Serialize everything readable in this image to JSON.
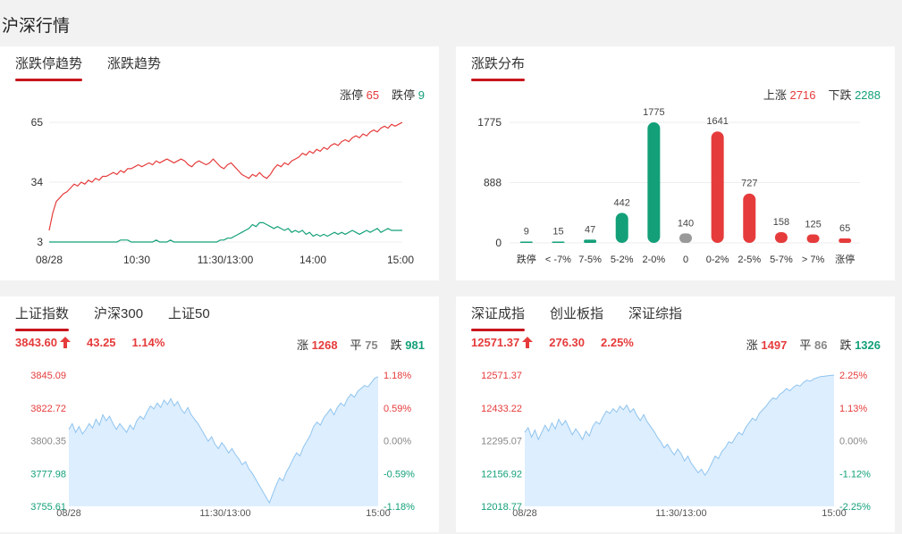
{
  "page_title": "沪深行情",
  "colors": {
    "up": "#e63b3b",
    "down": "#13a079",
    "flat": "#999999",
    "accent": "#c8161d",
    "area": "#ddeeff",
    "area_line": "#8fc4ee"
  },
  "updown": {
    "tabs": [
      "涨跌停趋势",
      "涨跌趋势"
    ],
    "active_tab": 0,
    "limit_up_label": "涨停",
    "limit_up_value": "65",
    "limit_down_label": "跌停",
    "limit_down_value": "9",
    "y_ticks": [
      "65",
      "34",
      "3"
    ],
    "x_ticks": [
      "08/28",
      "10:30",
      "11:30/13:00",
      "14:00",
      "15:00"
    ]
  },
  "dist": {
    "tabs": [
      "涨跌分布"
    ],
    "active_tab": 0,
    "up_label": "上涨",
    "up_value": "2716",
    "down_label": "下跌",
    "down_value": "2288",
    "y_ticks": [
      "1775",
      "888",
      "0"
    ]
  },
  "sh": {
    "tabs": [
      "上证指数",
      "沪深300",
      "上证50"
    ],
    "active_tab": 0,
    "price": "3843.60",
    "price_icon": "arrow-up-icon",
    "change": "43.25",
    "change_pct": "1.14%",
    "up_label": "涨",
    "up_count": "1268",
    "flat_label": "平",
    "flat_count": "75",
    "down_label": "跌",
    "down_count": "981",
    "y_ticks_left": [
      "3845.09",
      "3822.72",
      "3800.35",
      "3777.98",
      "3755.61"
    ],
    "y_ticks_right": [
      "1.18%",
      "0.59%",
      "0.00%",
      "-0.59%",
      "-1.18%"
    ],
    "x_ticks": [
      "08/28",
      "11:30/13:00",
      "15:00"
    ]
  },
  "sz": {
    "tabs": [
      "深证成指",
      "创业板指",
      "深证综指"
    ],
    "active_tab": 0,
    "price": "12571.37",
    "price_icon": "arrow-up-icon",
    "change": "276.30",
    "change_pct": "2.25%",
    "up_label": "涨",
    "up_count": "1497",
    "flat_label": "平",
    "flat_count": "86",
    "down_label": "跌",
    "down_count": "1326",
    "y_ticks_left": [
      "12571.37",
      "12433.22",
      "12295.07",
      "12156.92",
      "12018.77"
    ],
    "y_ticks_right": [
      "2.25%",
      "1.13%",
      "0.00%",
      "-1.12%",
      "-2.25%"
    ],
    "x_ticks": [
      "08/28",
      "11:30/13:00",
      "15:00"
    ]
  },
  "chart_data": [
    {
      "type": "line",
      "title": "涨跌停趋势",
      "x_ticks": [
        "08/28",
        "10:30",
        "11:30/13:00",
        "14:00",
        "15:00"
      ],
      "ylim": [
        3,
        65
      ],
      "series": [
        {
          "name": "涨停",
          "color": "#e63b3b",
          "values": [
            9,
            18,
            24,
            26,
            28,
            29,
            31,
            33,
            32,
            34,
            33,
            35,
            34,
            36,
            35,
            37,
            37,
            38,
            39,
            38,
            40,
            39,
            41,
            41,
            42,
            43,
            42,
            43,
            44,
            43,
            45,
            44,
            45,
            46,
            45,
            44,
            45,
            46,
            45,
            43,
            42,
            44,
            45,
            44,
            43,
            44,
            46,
            44,
            42,
            41,
            43,
            44,
            42,
            40,
            38,
            37,
            36,
            38,
            37,
            39,
            37,
            36,
            38,
            41,
            43,
            42,
            44,
            43,
            45,
            46,
            47,
            49,
            48,
            50,
            49,
            51,
            50,
            52,
            51,
            53,
            54,
            53,
            55,
            56,
            55,
            57,
            58,
            57,
            59,
            58,
            60,
            61,
            60,
            62,
            63,
            62,
            64,
            63,
            64,
            65
          ]
        },
        {
          "name": "跌停",
          "color": "#13a079",
          "values": [
            3,
            3,
            3,
            3,
            3,
            3,
            3,
            3,
            3,
            3,
            3,
            3,
            3,
            3,
            3,
            3,
            3,
            3,
            3,
            3,
            4,
            4,
            4,
            3,
            3,
            3,
            3,
            3,
            3,
            3,
            4,
            3,
            3,
            3,
            4,
            3,
            3,
            3,
            3,
            3,
            3,
            3,
            3,
            3,
            3,
            3,
            3,
            3,
            4,
            4,
            5,
            5,
            6,
            7,
            8,
            9,
            10,
            12,
            11,
            13,
            13,
            12,
            11,
            10,
            11,
            10,
            9,
            10,
            8,
            9,
            8,
            9,
            7,
            8,
            6,
            7,
            6,
            7,
            6,
            7,
            8,
            7,
            8,
            7,
            8,
            9,
            8,
            7,
            8,
            9,
            8,
            9,
            10,
            8,
            9,
            10,
            9,
            9,
            9,
            9
          ]
        }
      ]
    },
    {
      "type": "bar",
      "title": "涨跌分布",
      "categories": [
        "跌停",
        "< -7%",
        "7-5%",
        "5-2%",
        "2-0%",
        "0",
        "0-2%",
        "2-5%",
        "5-7%",
        "> 7%",
        "涨停"
      ],
      "values": [
        9,
        15,
        47,
        442,
        1775,
        140,
        1641,
        727,
        158,
        125,
        65
      ],
      "colors": [
        "#13a079",
        "#13a079",
        "#13a079",
        "#13a079",
        "#13a079",
        "#999999",
        "#e63b3b",
        "#e63b3b",
        "#e63b3b",
        "#e63b3b",
        "#e63b3b"
      ],
      "ylim": [
        0,
        1775
      ]
    },
    {
      "type": "area",
      "title": "上证指数",
      "x_ticks": [
        "08/28",
        "11:30/13:00",
        "15:00"
      ],
      "ylim": [
        3755.61,
        3845.09
      ],
      "values": [
        3808,
        3812,
        3806,
        3810,
        3805,
        3808,
        3812,
        3809,
        3815,
        3811,
        3818,
        3814,
        3817,
        3812,
        3808,
        3812,
        3809,
        3806,
        3811,
        3808,
        3814,
        3817,
        3815,
        3820,
        3824,
        3822,
        3826,
        3823,
        3828,
        3825,
        3829,
        3824,
        3827,
        3822,
        3819,
        3823,
        3818,
        3815,
        3812,
        3808,
        3804,
        3800,
        3803,
        3798,
        3795,
        3799,
        3796,
        3792,
        3795,
        3791,
        3788,
        3784,
        3786,
        3781,
        3778,
        3774,
        3770,
        3766,
        3762,
        3758,
        3764,
        3770,
        3775,
        3773,
        3779,
        3783,
        3788,
        3792,
        3790,
        3796,
        3800,
        3804,
        3810,
        3813,
        3811,
        3816,
        3819,
        3822,
        3818,
        3823,
        3826,
        3824,
        3829,
        3832,
        3830,
        3834,
        3836,
        3838,
        3837,
        3840,
        3843,
        3844
      ]
    },
    {
      "type": "area",
      "title": "深证成指",
      "x_ticks": [
        "08/28",
        "11:30/13:00",
        "15:00"
      ],
      "ylim": [
        12018.77,
        12571.37
      ],
      "values": [
        12330,
        12350,
        12310,
        12340,
        12300,
        12330,
        12360,
        12335,
        12370,
        12345,
        12385,
        12360,
        12380,
        12350,
        12320,
        12345,
        12325,
        12300,
        12335,
        12315,
        12355,
        12375,
        12365,
        12395,
        12420,
        12410,
        12430,
        12415,
        12440,
        12425,
        12445,
        12415,
        12430,
        12400,
        12380,
        12405,
        12375,
        12355,
        12335,
        12310,
        12290,
        12265,
        12280,
        12255,
        12235,
        12260,
        12240,
        12210,
        12230,
        12200,
        12180,
        12160,
        12175,
        12150,
        12170,
        12200,
        12230,
        12220,
        12250,
        12265,
        12290,
        12285,
        12310,
        12330,
        12320,
        12350,
        12370,
        12390,
        12380,
        12410,
        12425,
        12440,
        12460,
        12475,
        12470,
        12490,
        12500,
        12515,
        12505,
        12520,
        12530,
        12525,
        12540,
        12550,
        12545,
        12555,
        12560,
        12565,
        12566,
        12568,
        12570,
        12571
      ]
    }
  ]
}
